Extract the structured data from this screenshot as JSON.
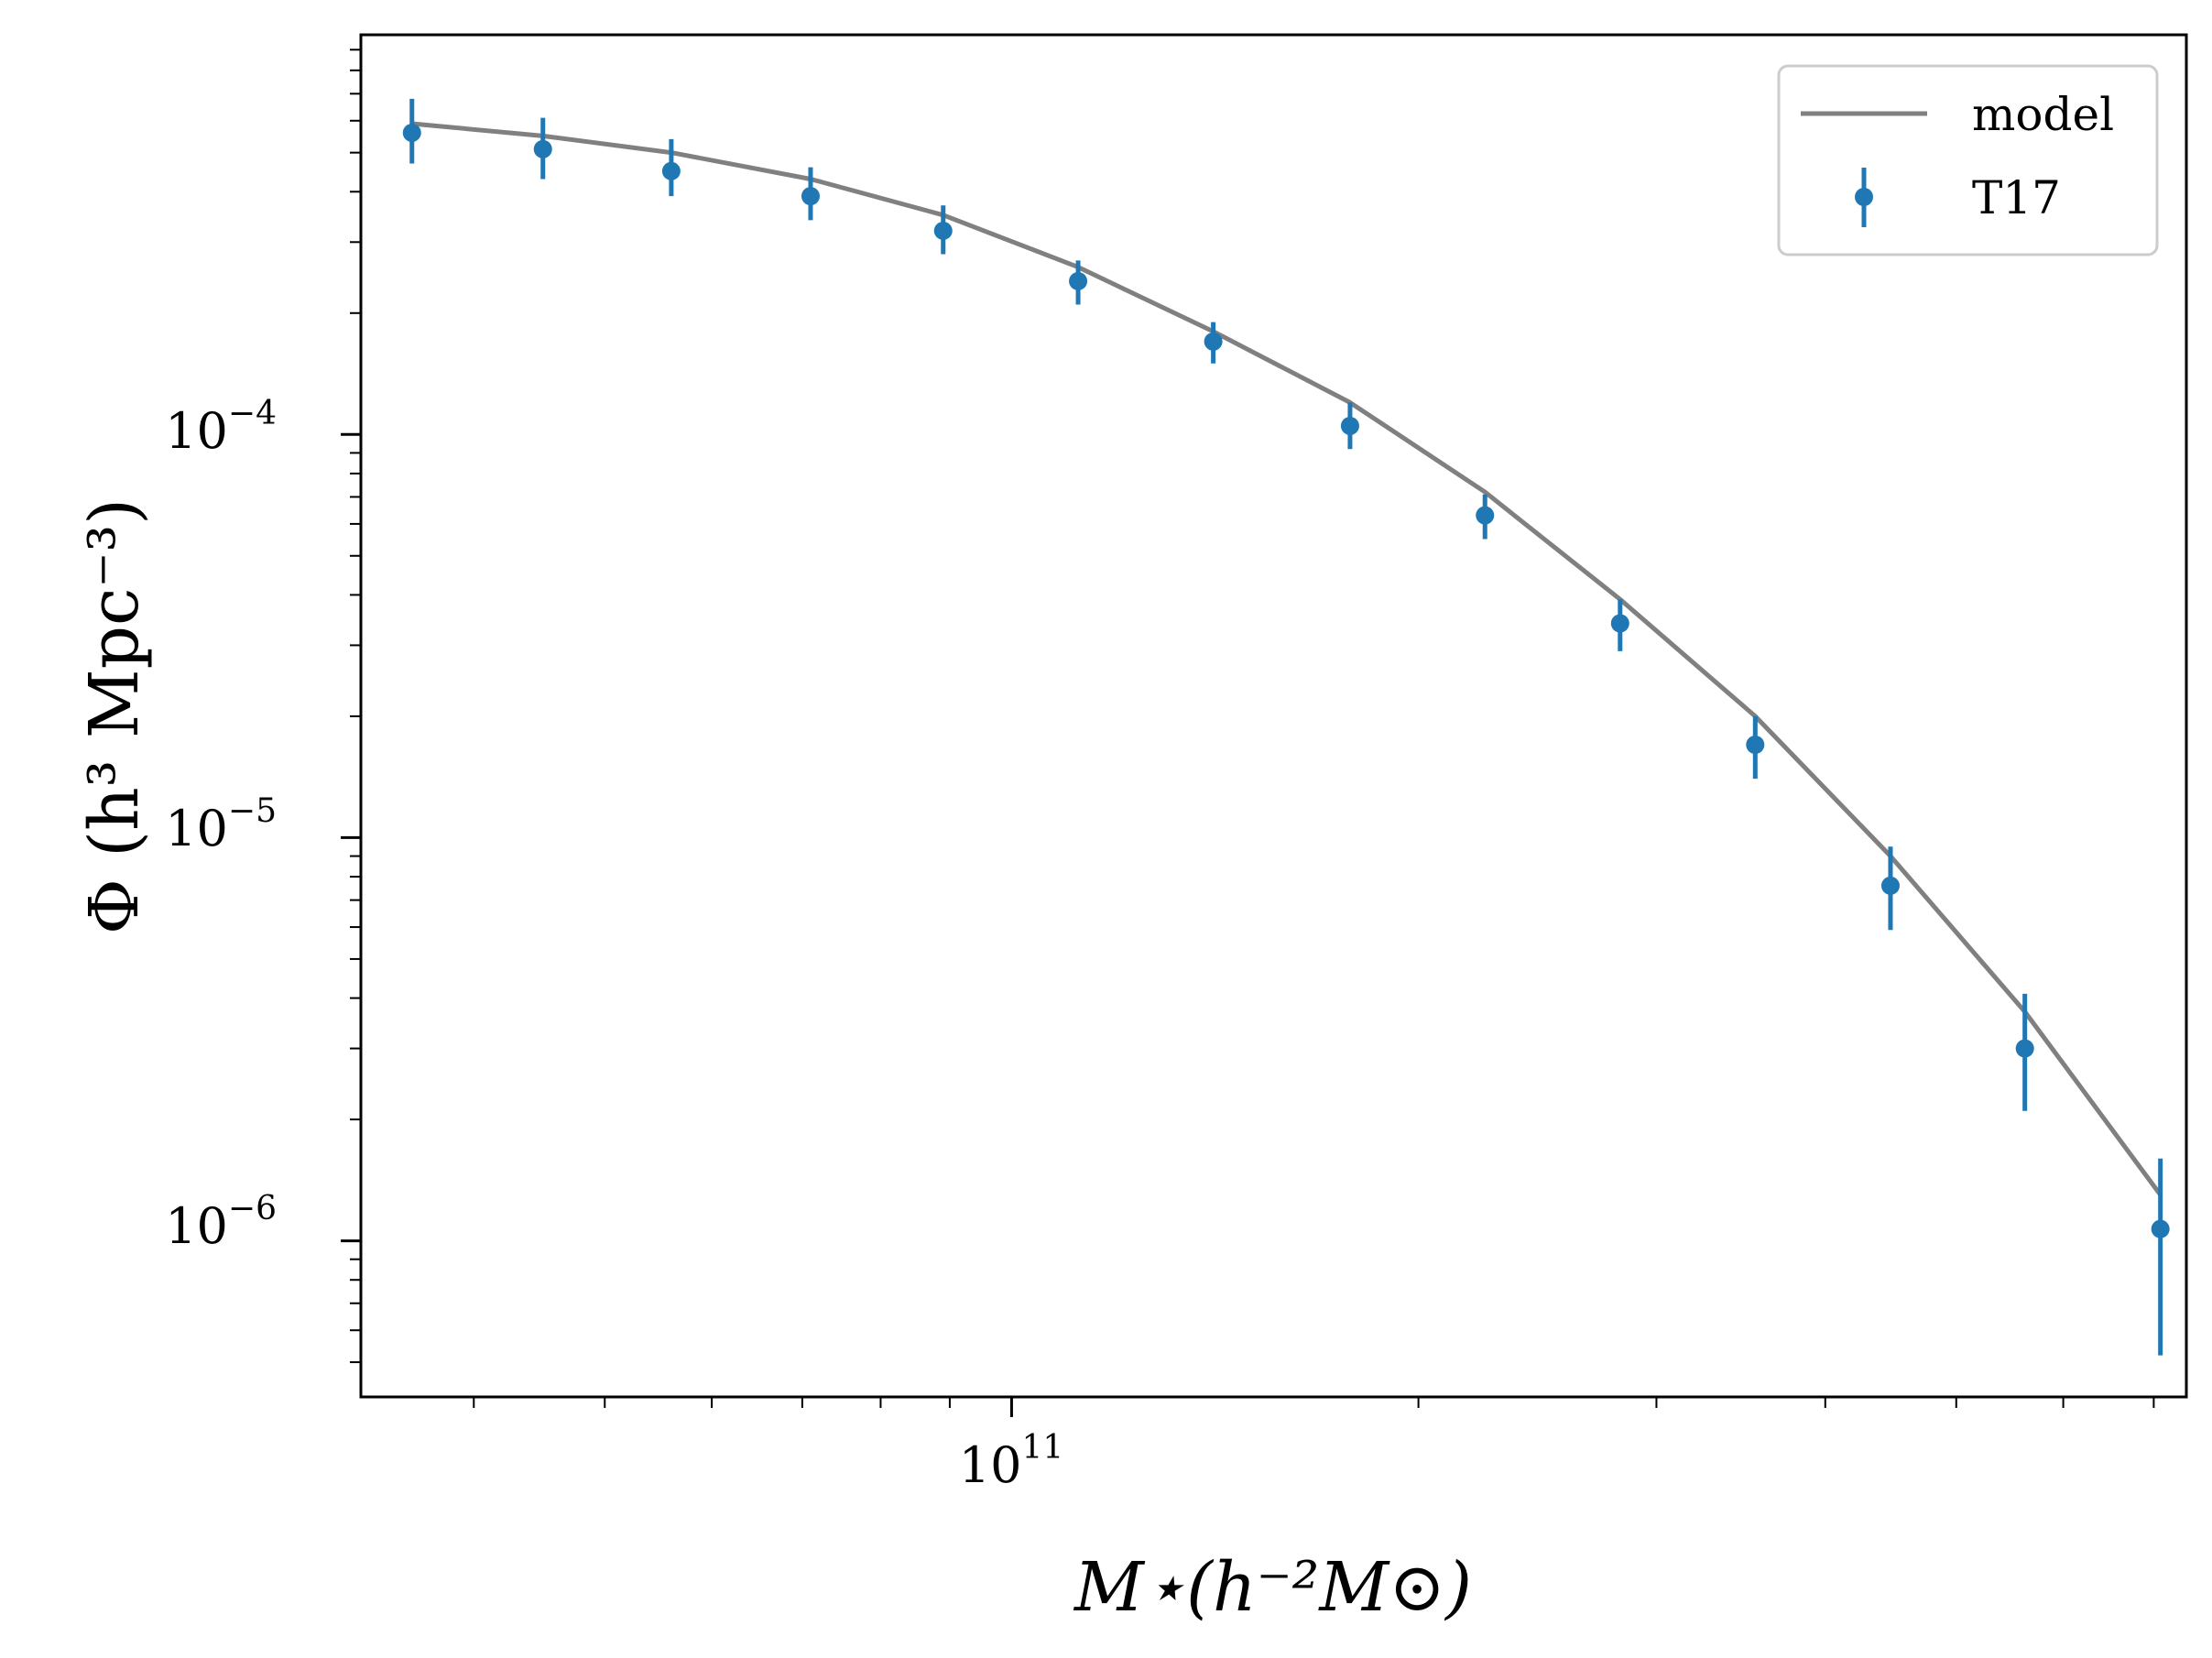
{
  "chart_data": {
    "type": "scatter",
    "xscale": "log",
    "yscale": "log",
    "xlim": [
      33000000000.0,
      740000000000.0
    ],
    "ylim": [
      4.1e-07,
      0.00098
    ],
    "xlabel": "M⋆(h⁻²M⊙)",
    "ylabel": "Φ (h³ Mpc⁻³)",
    "legend_position": "top-right",
    "grid": false,
    "x_ticks": [
      {
        "value": 100000000000.0,
        "base": "10",
        "exp": "11"
      }
    ],
    "y_ticks": [
      {
        "value": 0.0001,
        "base": "10",
        "exp": "−4"
      },
      {
        "value": 1e-05,
        "base": "10",
        "exp": "−5"
      },
      {
        "value": 1e-06,
        "base": "10",
        "exp": "−6"
      }
    ],
    "series": [
      {
        "name": "model",
        "kind": "line",
        "color": "#808080",
        "x": [
          36000000000.0,
          45000000000.0,
          56000000000.0,
          71000000000.0,
          89000000000.0,
          112000000000.0,
          141000000000.0,
          178000000000.0,
          224000000000.0,
          282000000000.0,
          355000000000.0,
          447000000000.0,
          562000000000.0,
          708000000000.0
        ],
        "y": [
          0.00059,
          0.00055,
          0.0005,
          0.00043,
          0.00035,
          0.00026,
          0.00018,
          0.00012,
          7.2e-05,
          3.9e-05,
          2e-05,
          9e-06,
          3.7e-06,
          1.3e-06
        ]
      },
      {
        "name": "T17",
        "kind": "errorbar",
        "color": "#1f77b4",
        "x": [
          36000000000.0,
          45000000000.0,
          56000000000.0,
          71000000000.0,
          89000000000.0,
          112000000000.0,
          141000000000.0,
          178000000000.0,
          224000000000.0,
          282000000000.0,
          355000000000.0,
          447000000000.0,
          562000000000.0,
          708000000000.0
        ],
        "y": [
          0.00056,
          0.00051,
          0.00045,
          0.00039,
          0.00032,
          0.00024,
          0.00017,
          0.000105,
          6.3e-05,
          3.4e-05,
          1.7e-05,
          7.6e-06,
          3e-06,
          1.07e-06
        ],
        "y_low": [
          0.00047,
          0.00043,
          0.00039,
          0.00034,
          0.00028,
          0.00021,
          0.00015,
          9.2e-05,
          5.5e-05,
          2.9e-05,
          1.4e-05,
          5.9e-06,
          2.1e-06,
          5.2e-07
        ],
        "y_high": [
          0.00068,
          0.00061,
          0.00054,
          0.00046,
          0.00037,
          0.00027,
          0.00019,
          0.00012,
          7.1e-05,
          3.9e-05,
          2e-05,
          9.5e-06,
          4.1e-06,
          1.6e-06
        ]
      }
    ]
  }
}
